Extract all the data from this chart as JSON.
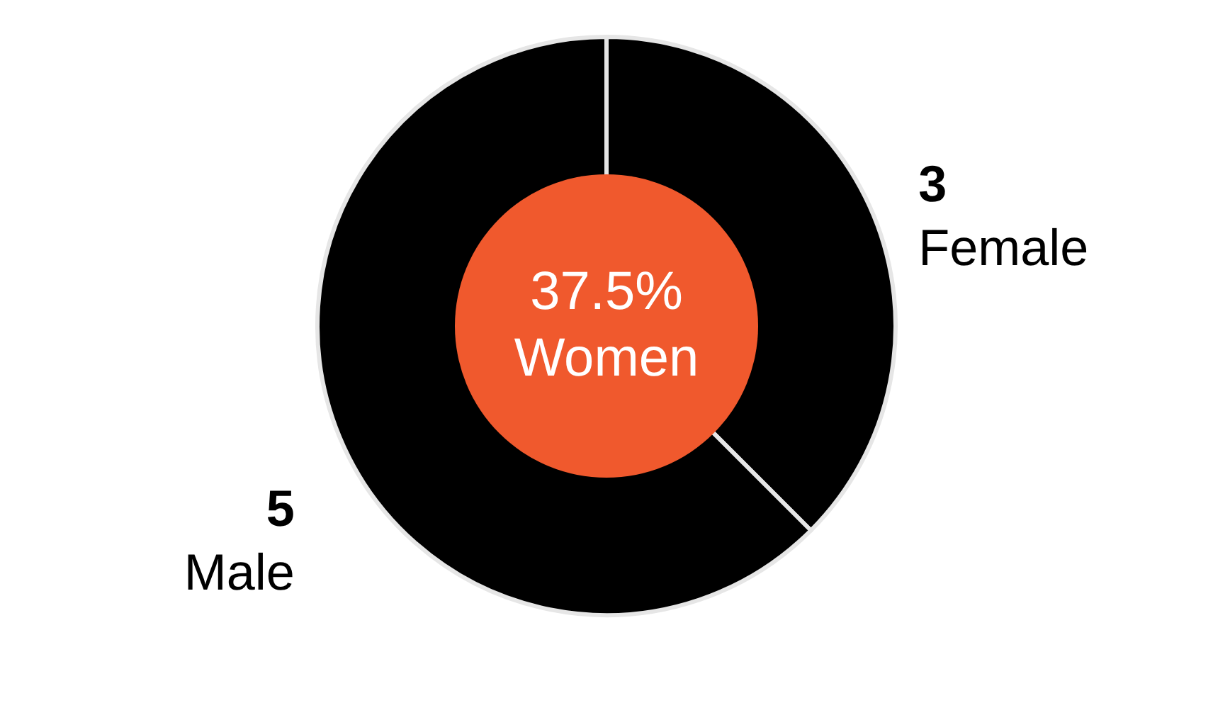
{
  "chart_data": {
    "type": "donut",
    "categories": [
      "Female",
      "Male"
    ],
    "values": [
      3,
      5
    ],
    "colors": [
      "#000000",
      "#000000"
    ],
    "data_labels": true,
    "annotations": [
      "37.5%",
      "Women"
    ]
  }
}
